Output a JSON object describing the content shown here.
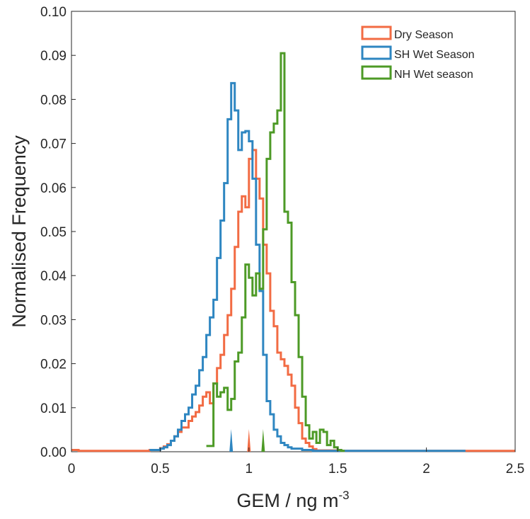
{
  "chart_data": {
    "type": "histogram",
    "xlabel": "GEM / ng m",
    "xlabel_superscript": "-3",
    "ylabel": "Normalised Frequency",
    "xlim": [
      0,
      2.5
    ],
    "ylim": [
      0,
      0.1
    ],
    "grid": false,
    "legend_position": "top-right",
    "x_ticks": [
      "0",
      "0.5",
      "1",
      "1.5",
      "2",
      "2.5"
    ],
    "y_ticks": [
      "0.00",
      "0.01",
      "0.02",
      "0.03",
      "0.04",
      "0.05",
      "0.06",
      "0.07",
      "0.08",
      "0.09",
      "0.10"
    ],
    "bin_width": 0.02,
    "series": [
      {
        "name": "Dry Season",
        "color": "#f26b43",
        "median_marker": 1.0,
        "steps": [
          [
            0,
            0.0004
          ],
          [
            0.04,
            0.0002
          ],
          [
            0.44,
            0.0004
          ],
          [
            0.5,
            0.0008
          ],
          [
            0.52,
            0.0012
          ],
          [
            0.54,
            0.0017
          ],
          [
            0.56,
            0.0025
          ],
          [
            0.58,
            0.0035
          ],
          [
            0.6,
            0.0045
          ],
          [
            0.62,
            0.0055
          ],
          [
            0.66,
            0.007
          ],
          [
            0.68,
            0.008
          ],
          [
            0.7,
            0.009
          ],
          [
            0.72,
            0.0105
          ],
          [
            0.74,
            0.0125
          ],
          [
            0.76,
            0.0135
          ],
          [
            0.78,
            0.011
          ],
          [
            0.8,
            0.0155
          ],
          [
            0.82,
            0.019
          ],
          [
            0.84,
            0.022
          ],
          [
            0.86,
            0.0265
          ],
          [
            0.88,
            0.031
          ],
          [
            0.9,
            0.037
          ],
          [
            0.92,
            0.0465
          ],
          [
            0.94,
            0.0545
          ],
          [
            0.96,
            0.058
          ],
          [
            0.98,
            0.0555
          ],
          [
            1.0,
            0.0665
          ],
          [
            1.02,
            0.0685
          ],
          [
            1.04,
            0.062
          ],
          [
            1.06,
            0.0575
          ],
          [
            1.08,
            0.047
          ],
          [
            1.1,
            0.0405
          ],
          [
            1.12,
            0.032
          ],
          [
            1.14,
            0.0285
          ],
          [
            1.16,
            0.0225
          ],
          [
            1.18,
            0.021
          ],
          [
            1.2,
            0.0195
          ],
          [
            1.22,
            0.0175
          ],
          [
            1.24,
            0.015
          ],
          [
            1.26,
            0.01
          ],
          [
            1.28,
            0.0065
          ],
          [
            1.3,
            0.003
          ],
          [
            1.32,
            0.002
          ],
          [
            1.34,
            0.0012
          ],
          [
            1.36,
            0.0006
          ],
          [
            1.38,
            0.0003
          ],
          [
            1.52,
            0.0002
          ],
          [
            2.5,
            0.0002
          ]
        ]
      },
      {
        "name": "SH Wet Season",
        "color": "#2e86c1",
        "median_marker": 0.9,
        "steps": [
          [
            0.44,
            0.0004
          ],
          [
            0.5,
            0.0007
          ],
          [
            0.52,
            0.001
          ],
          [
            0.54,
            0.0015
          ],
          [
            0.56,
            0.0025
          ],
          [
            0.58,
            0.0035
          ],
          [
            0.6,
            0.005
          ],
          [
            0.62,
            0.007
          ],
          [
            0.64,
            0.0085
          ],
          [
            0.66,
            0.01
          ],
          [
            0.68,
            0.013
          ],
          [
            0.7,
            0.015
          ],
          [
            0.72,
            0.0185
          ],
          [
            0.74,
            0.0215
          ],
          [
            0.76,
            0.0265
          ],
          [
            0.78,
            0.0305
          ],
          [
            0.8,
            0.0345
          ],
          [
            0.82,
            0.044
          ],
          [
            0.84,
            0.0525
          ],
          [
            0.86,
            0.061
          ],
          [
            0.88,
            0.0755
          ],
          [
            0.9,
            0.0837
          ],
          [
            0.92,
            0.0775
          ],
          [
            0.94,
            0.0685
          ],
          [
            0.96,
            0.0725
          ],
          [
            0.98,
            0.0728
          ],
          [
            1.0,
            0.0705
          ],
          [
            1.02,
            0.062
          ],
          [
            1.04,
            0.047
          ],
          [
            1.06,
            0.0365
          ],
          [
            1.08,
            0.022
          ],
          [
            1.1,
            0.0115
          ],
          [
            1.12,
            0.0085
          ],
          [
            1.14,
            0.005
          ],
          [
            1.16,
            0.0035
          ],
          [
            1.18,
            0.002
          ],
          [
            1.2,
            0.0015
          ],
          [
            1.22,
            0.001
          ],
          [
            1.24,
            0.0007
          ],
          [
            1.3,
            0.0004
          ],
          [
            1.36,
            0.0002
          ],
          [
            2.2,
            0.0002
          ]
        ]
      },
      {
        "name": "NH Wet season",
        "color": "#4d9a26",
        "median_marker": 1.08,
        "steps": [
          [
            0.76,
            0.0013
          ],
          [
            0.8,
            0.0155
          ],
          [
            0.82,
            0.0125
          ],
          [
            0.84,
            0.0135
          ],
          [
            0.86,
            0.0145
          ],
          [
            0.88,
            0.0095
          ],
          [
            0.9,
            0.012
          ],
          [
            0.92,
            0.0205
          ],
          [
            0.94,
            0.0225
          ],
          [
            0.96,
            0.0305
          ],
          [
            0.98,
            0.0425
          ],
          [
            1.0,
            0.0395
          ],
          [
            1.02,
            0.0355
          ],
          [
            1.04,
            0.0405
          ],
          [
            1.06,
            0.037
          ],
          [
            1.08,
            0.0505
          ],
          [
            1.1,
            0.0665
          ],
          [
            1.12,
            0.0725
          ],
          [
            1.14,
            0.0745
          ],
          [
            1.16,
            0.0775
          ],
          [
            1.18,
            0.0905
          ],
          [
            1.2,
            0.0545
          ],
          [
            1.22,
            0.052
          ],
          [
            1.24,
            0.0385
          ],
          [
            1.26,
            0.031
          ],
          [
            1.28,
            0.0215
          ],
          [
            1.3,
            0.0125
          ],
          [
            1.32,
            0.006
          ],
          [
            1.34,
            0.003
          ],
          [
            1.36,
            0.0045
          ],
          [
            1.38,
            0.002
          ],
          [
            1.4,
            0.005
          ],
          [
            1.42,
            0.0045
          ],
          [
            1.44,
            0.0015
          ],
          [
            1.46,
            0.0025
          ],
          [
            1.48,
            0.001
          ],
          [
            1.5,
            0.0004
          ],
          [
            1.52,
            0.0002
          ]
        ]
      }
    ]
  }
}
